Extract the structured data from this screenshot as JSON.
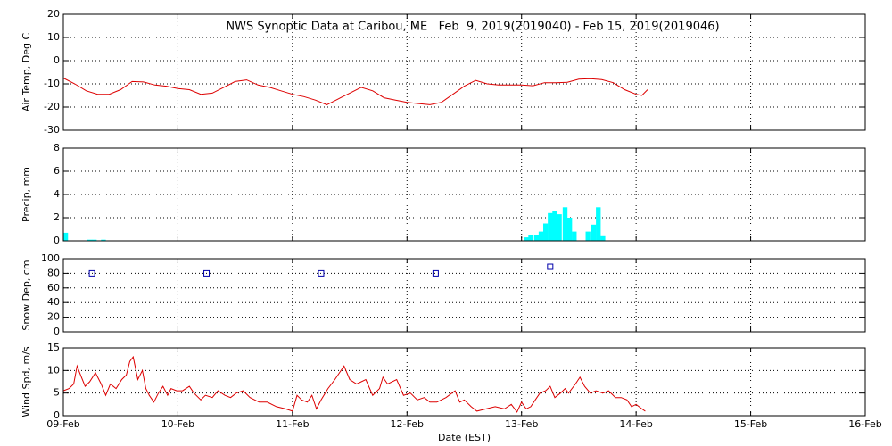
{
  "chart_data": [
    {
      "type": "line",
      "title": "NWS Synoptic Data at Caribou, ME   Feb  9, 2019(2019040) - Feb 15, 2019(2019046)",
      "ylabel": "Air Temp, Deg C",
      "series": [
        {
          "name": "Air Temp",
          "color": "#dd0000",
          "x": [
            0,
            0.1,
            0.2,
            0.3,
            0.4,
            0.5,
            0.6,
            0.7,
            0.8,
            0.9,
            1.0,
            1.1,
            1.2,
            1.3,
            1.4,
            1.5,
            1.6,
            1.7,
            1.8,
            1.9,
            2.0,
            2.1,
            2.2,
            2.3,
            2.4,
            2.5,
            2.6,
            2.7,
            2.8,
            2.9,
            3.0,
            3.1,
            3.2,
            3.3,
            3.4,
            3.5,
            3.6,
            3.7,
            3.8,
            3.9,
            4.0,
            4.1,
            4.2,
            4.3,
            4.4,
            4.5,
            4.6,
            4.7,
            4.8,
            4.9,
            5.0,
            5.05,
            5.1
          ],
          "values": [
            -7.5,
            -10,
            -13,
            -14.5,
            -14.5,
            -12.5,
            -9,
            -9.2,
            -10.5,
            -11,
            -12,
            -12.5,
            -14.5,
            -14,
            -11.5,
            -9,
            -8.3,
            -10.5,
            -11.5,
            -13,
            -14.5,
            -15.5,
            -17,
            -19,
            -16.5,
            -14,
            -11.5,
            -13,
            -16,
            -17,
            -18,
            -18.5,
            -19,
            -18,
            -14.5,
            -11,
            -8.5,
            -10,
            -10.5,
            -10.5,
            -10.5,
            -10.8,
            -9.5,
            -9.5,
            -9.3,
            -8,
            -7.8,
            -8.2,
            -9.5,
            -12.5,
            -14.5,
            -15,
            -12.5
          ]
        }
      ],
      "ylim": [
        -30,
        20
      ],
      "yticks": [
        -30,
        -20,
        -10,
        0,
        10,
        20
      ],
      "grid": true
    },
    {
      "type": "bar",
      "ylabel": "Precip, mm",
      "series": [
        {
          "name": "Precip",
          "color": "#00ffff",
          "x": [
            0.02,
            0.23,
            0.27,
            0.35,
            4.04,
            4.08,
            4.13,
            4.17,
            4.21,
            4.25,
            4.29,
            4.33,
            4.38,
            4.42,
            4.46,
            4.58,
            4.63,
            4.67,
            4.71
          ],
          "values": [
            0.7,
            0.1,
            0.1,
            0.1,
            0.3,
            0.5,
            0.5,
            0.8,
            1.5,
            2.4,
            2.6,
            2.3,
            2.9,
            2.0,
            0.8,
            0.8,
            1.4,
            2.9,
            0.4
          ]
        }
      ],
      "ylim": [
        0,
        8
      ],
      "yticks": [
        0,
        2,
        4,
        6,
        8
      ],
      "grid": true
    },
    {
      "type": "scatter",
      "ylabel": "Snow Dep, cm",
      "series": [
        {
          "name": "Snow Depth",
          "color": "#0000aa",
          "x": [
            0.25,
            1.25,
            2.25,
            3.25,
            4.25
          ],
          "values": [
            80,
            80,
            80,
            80,
            89
          ]
        }
      ],
      "ylim": [
        0,
        100
      ],
      "yticks": [
        0,
        20,
        40,
        60,
        80,
        100
      ],
      "grid": true
    },
    {
      "type": "line",
      "ylabel": "Wind Spd, m/s",
      "xlabel": "Date (EST)",
      "series": [
        {
          "name": "Wind Speed",
          "color": "#dd0000",
          "x": [
            0,
            0.05,
            0.09,
            0.12,
            0.15,
            0.19,
            0.23,
            0.28,
            0.33,
            0.37,
            0.41,
            0.46,
            0.51,
            0.55,
            0.58,
            0.61,
            0.65,
            0.69,
            0.72,
            0.75,
            0.79,
            0.83,
            0.87,
            0.91,
            0.94,
            0.99,
            1.04,
            1.1,
            1.14,
            1.2,
            1.24,
            1.3,
            1.35,
            1.41,
            1.46,
            1.51,
            1.57,
            1.63,
            1.71,
            1.78,
            1.86,
            1.94,
            2.0,
            2.04,
            2.08,
            2.13,
            2.17,
            2.21,
            2.25,
            2.31,
            2.37,
            2.45,
            2.5,
            2.56,
            2.64,
            2.7,
            2.76,
            2.79,
            2.83,
            2.91,
            2.97,
            3.03,
            3.09,
            3.15,
            3.2,
            3.26,
            3.34,
            3.42,
            3.46,
            3.5,
            3.56,
            3.61,
            3.69,
            3.77,
            3.85,
            3.91,
            3.96,
            4.0,
            4.04,
            4.08,
            4.12,
            4.16,
            4.21,
            4.25,
            4.29,
            4.34,
            4.38,
            4.41,
            4.47,
            4.51,
            4.55,
            4.6,
            4.65,
            4.71,
            4.76,
            4.82,
            4.87,
            4.92,
            4.96,
            5.0,
            5.05,
            5.08
          ],
          "values": [
            5.5,
            6,
            7,
            11,
            9,
            6.5,
            7.5,
            9.5,
            7,
            4.5,
            7,
            6,
            8,
            9,
            12,
            13,
            8,
            10,
            6,
            4.5,
            3,
            5,
            6.5,
            4.5,
            6,
            5.5,
            5.5,
            6.5,
            5,
            3.5,
            4.5,
            4,
            5.5,
            4.5,
            4,
            5,
            5.5,
            4,
            3,
            3,
            2,
            1.5,
            1,
            4.5,
            3.5,
            3,
            4.5,
            1.5,
            3.5,
            6,
            8,
            11,
            8,
            7,
            8,
            4.5,
            6,
            8.5,
            7,
            8,
            4.5,
            5,
            3.5,
            4,
            3,
            3,
            4,
            5.5,
            3,
            3.5,
            2,
            1,
            1.5,
            2,
            1.5,
            2.5,
            0.8,
            3,
            1.5,
            2,
            3.5,
            5,
            5.5,
            6.5,
            4,
            5,
            6,
            5,
            7,
            8.5,
            6.5,
            5,
            5.5,
            5,
            5.5,
            4,
            4,
            3.5,
            2,
            2.5,
            1.5,
            1
          ]
        }
      ],
      "ylim": [
        0,
        15
      ],
      "yticks": [
        0,
        5,
        10,
        15
      ],
      "grid": true,
      "xlim": [
        0,
        7
      ],
      "xticks": [
        {
          "value": 0,
          "label": "09-Feb"
        },
        {
          "value": 1,
          "label": "10-Feb"
        },
        {
          "value": 2,
          "label": "11-Feb"
        },
        {
          "value": 3,
          "label": "12-Feb"
        },
        {
          "value": 4,
          "label": "13-Feb"
        },
        {
          "value": 5,
          "label": "14-Feb"
        },
        {
          "value": 6,
          "label": "15-Feb"
        },
        {
          "value": 7,
          "label": "16-Feb"
        }
      ]
    }
  ]
}
